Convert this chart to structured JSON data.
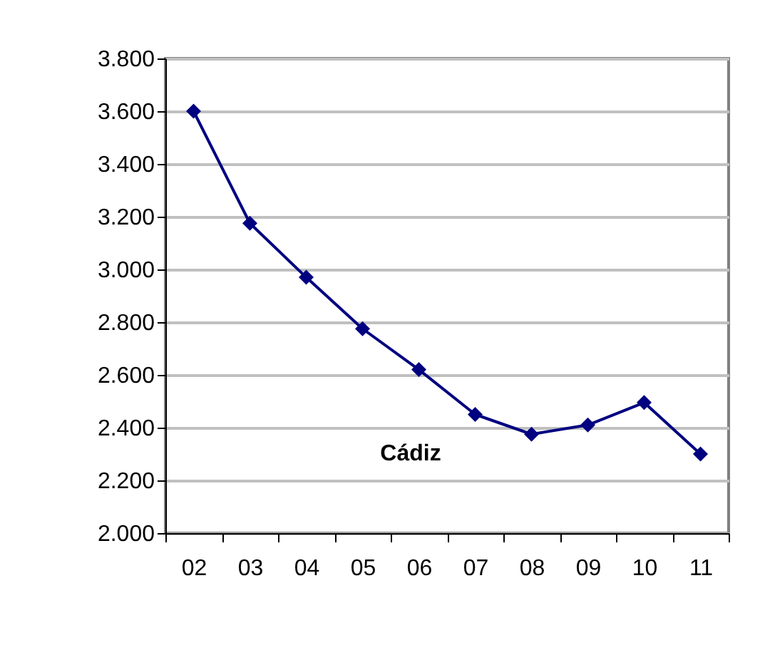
{
  "chart_data": {
    "type": "line",
    "categories": [
      "02",
      "03",
      "04",
      "05",
      "06",
      "07",
      "08",
      "09",
      "10",
      "11"
    ],
    "series": [
      {
        "color": "#000080",
        "values": [
          3600,
          3175,
          2970,
          2775,
          2620,
          2450,
          2375,
          2410,
          2495,
          2300
        ]
      }
    ],
    "ylim": [
      2000,
      3800
    ],
    "yticks": [
      {
        "value": 2000,
        "label": "2.000"
      },
      {
        "value": 2200,
        "label": "2.200"
      },
      {
        "value": 2400,
        "label": "2.400"
      },
      {
        "value": 2600,
        "label": "2.600"
      },
      {
        "value": 2800,
        "label": "2.800"
      },
      {
        "value": 3000,
        "label": "3.000"
      },
      {
        "value": 3200,
        "label": "3.200"
      },
      {
        "value": 3400,
        "label": "3.400"
      },
      {
        "value": 3600,
        "label": "3.600"
      },
      {
        "value": 3800,
        "label": "3.800"
      }
    ],
    "annotations": [
      "Cádiz"
    ],
    "grid": "y",
    "marker": "diamond",
    "legend": false
  }
}
